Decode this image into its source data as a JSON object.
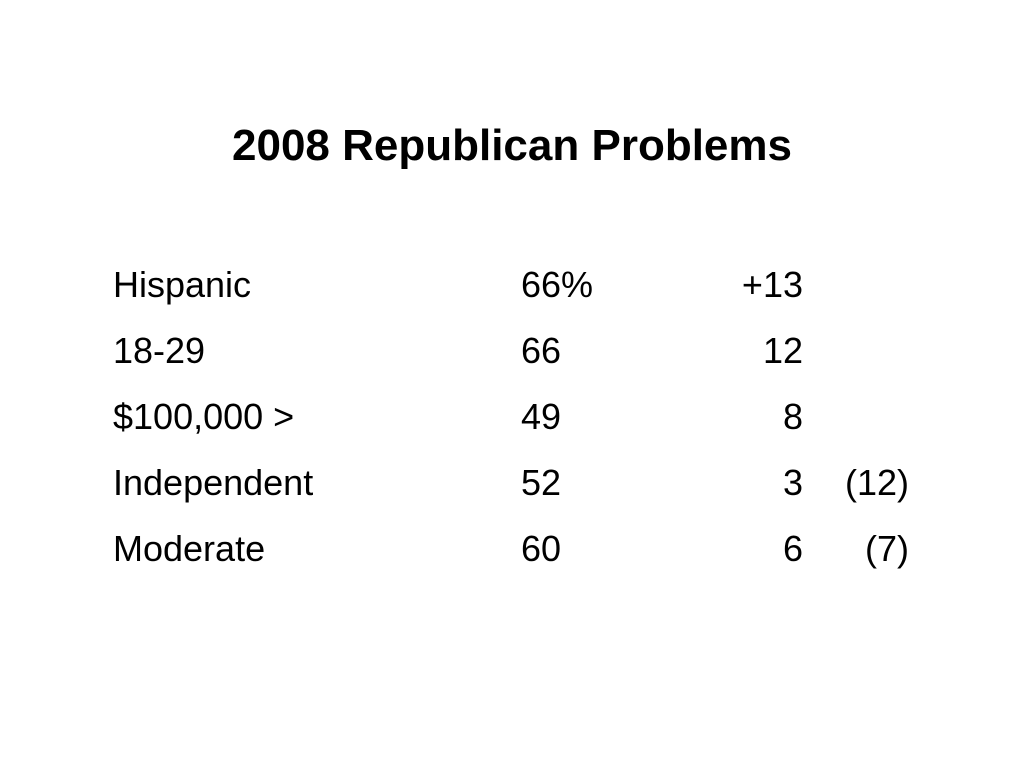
{
  "slide": {
    "title": "2008 Republican Problems",
    "rows": [
      {
        "label": "Hispanic",
        "pct": "66%",
        "change": "+13",
        "extra": ""
      },
      {
        "label": "18-29",
        "pct": "66",
        "change": "12",
        "extra": ""
      },
      {
        "label": "$100,000 >",
        "pct": "49",
        "change": "8",
        "extra": ""
      },
      {
        "label": "Independent",
        "pct": "52",
        "change": "3",
        "extra": "(12)"
      },
      {
        "label": "Moderate",
        "pct": "60",
        "change": "6",
        "extra": "(7)"
      }
    ]
  }
}
